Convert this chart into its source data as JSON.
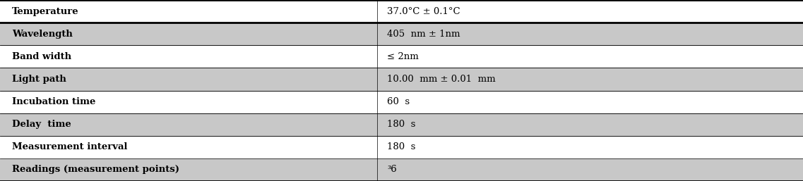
{
  "rows": [
    {
      "label": "Temperature",
      "value": "37.0°C ± 0.1°C",
      "shaded": false
    },
    {
      "label": "Wavelength",
      "value": "405  nm ± 1nm",
      "shaded": true
    },
    {
      "label": "Band width",
      "value": "≤ 2nm",
      "shaded": false
    },
    {
      "label": "Light path",
      "value": "10.00  mm ± 0.01  mm",
      "shaded": true
    },
    {
      "label": "Incubation time",
      "value": "60  s",
      "shaded": false
    },
    {
      "label": "Delay  time",
      "value": "180  s",
      "shaded": true
    },
    {
      "label": "Measurement interval",
      "value": "180  s",
      "shaded": false
    },
    {
      "label": "Readings (measurement points)",
      "value": "³6",
      "shaded": true
    }
  ],
  "col_split": 0.47,
  "shaded_color": "#c8c8c8",
  "white_color": "#ffffff",
  "border_color": "#000000",
  "text_color": "#000000",
  "label_fontsize": 9.5,
  "value_fontsize": 9.5,
  "thick_lw": 2.0,
  "thin_lw": 0.5,
  "figsize": [
    11.37,
    2.57
  ],
  "dpi": 100
}
